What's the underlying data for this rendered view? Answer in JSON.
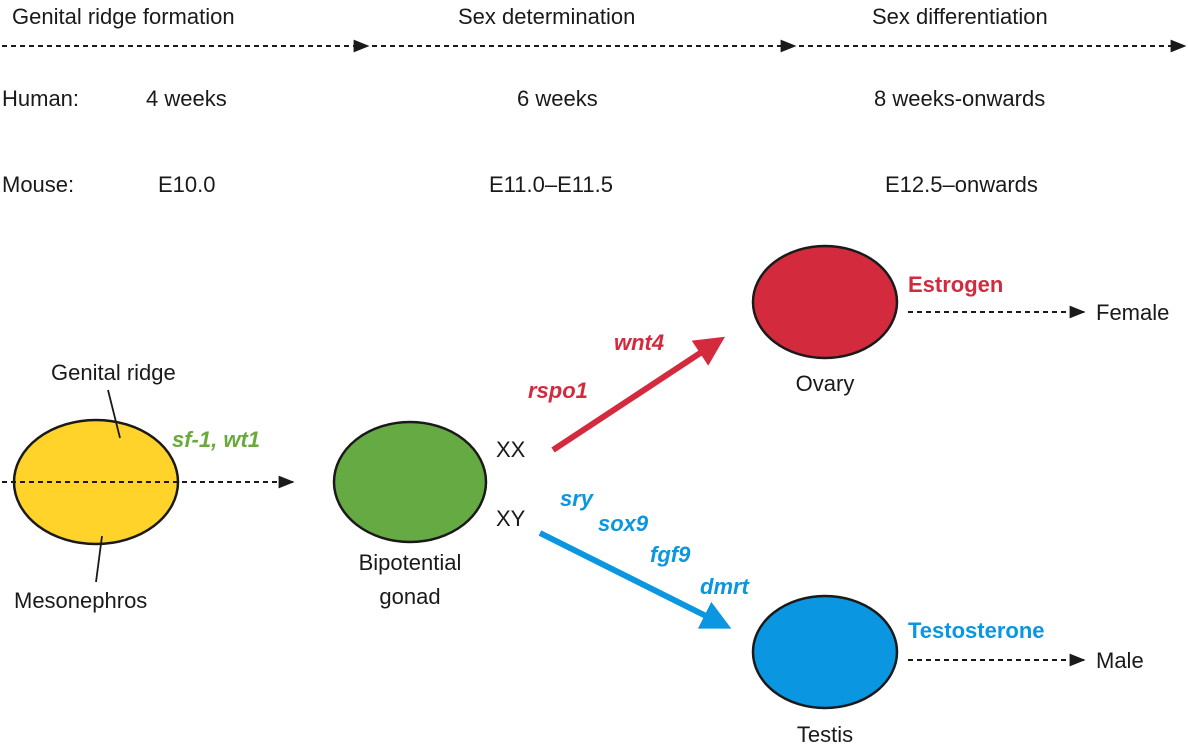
{
  "header": {
    "stages": [
      "Genital ridge formation",
      "Sex determination",
      "Sex differentiation"
    ]
  },
  "species": [
    {
      "label": "Human:",
      "times": [
        "4 weeks",
        "6 weeks",
        "8 weeks-onwards"
      ]
    },
    {
      "label": "Mouse:",
      "times": [
        "E10.0",
        "E11.0–E11.5",
        "E12.5–onwards"
      ]
    }
  ],
  "structures": {
    "genital_ridge_label": "Genital ridge",
    "mesonephros_label": "Mesonephros",
    "bipotential_line1": "Bipotential",
    "bipotential_line2": "gonad",
    "ovary_label": "Ovary",
    "testis_label": "Testis"
  },
  "genes": {
    "early": "sf-1, wt1",
    "female": [
      "rspo1",
      "wnt4"
    ],
    "male": [
      "sry",
      "sox9",
      "fgf9",
      "dmrt"
    ]
  },
  "karyotypes": {
    "xx": "XX",
    "xy": "XY"
  },
  "hormones": {
    "female": "Estrogen",
    "male": "Testosterone"
  },
  "outcomes": {
    "female": "Female",
    "male": "Male"
  },
  "colors": {
    "genital_ridge_fill": "#FFD32A",
    "bipotential_fill": "#66AA44",
    "ovary_fill": "#D42A3E",
    "testis_fill": "#0A96E0",
    "female_accent": "#D42A3E",
    "male_accent": "#0A96E0",
    "early_gene": "#6BAA3A"
  }
}
